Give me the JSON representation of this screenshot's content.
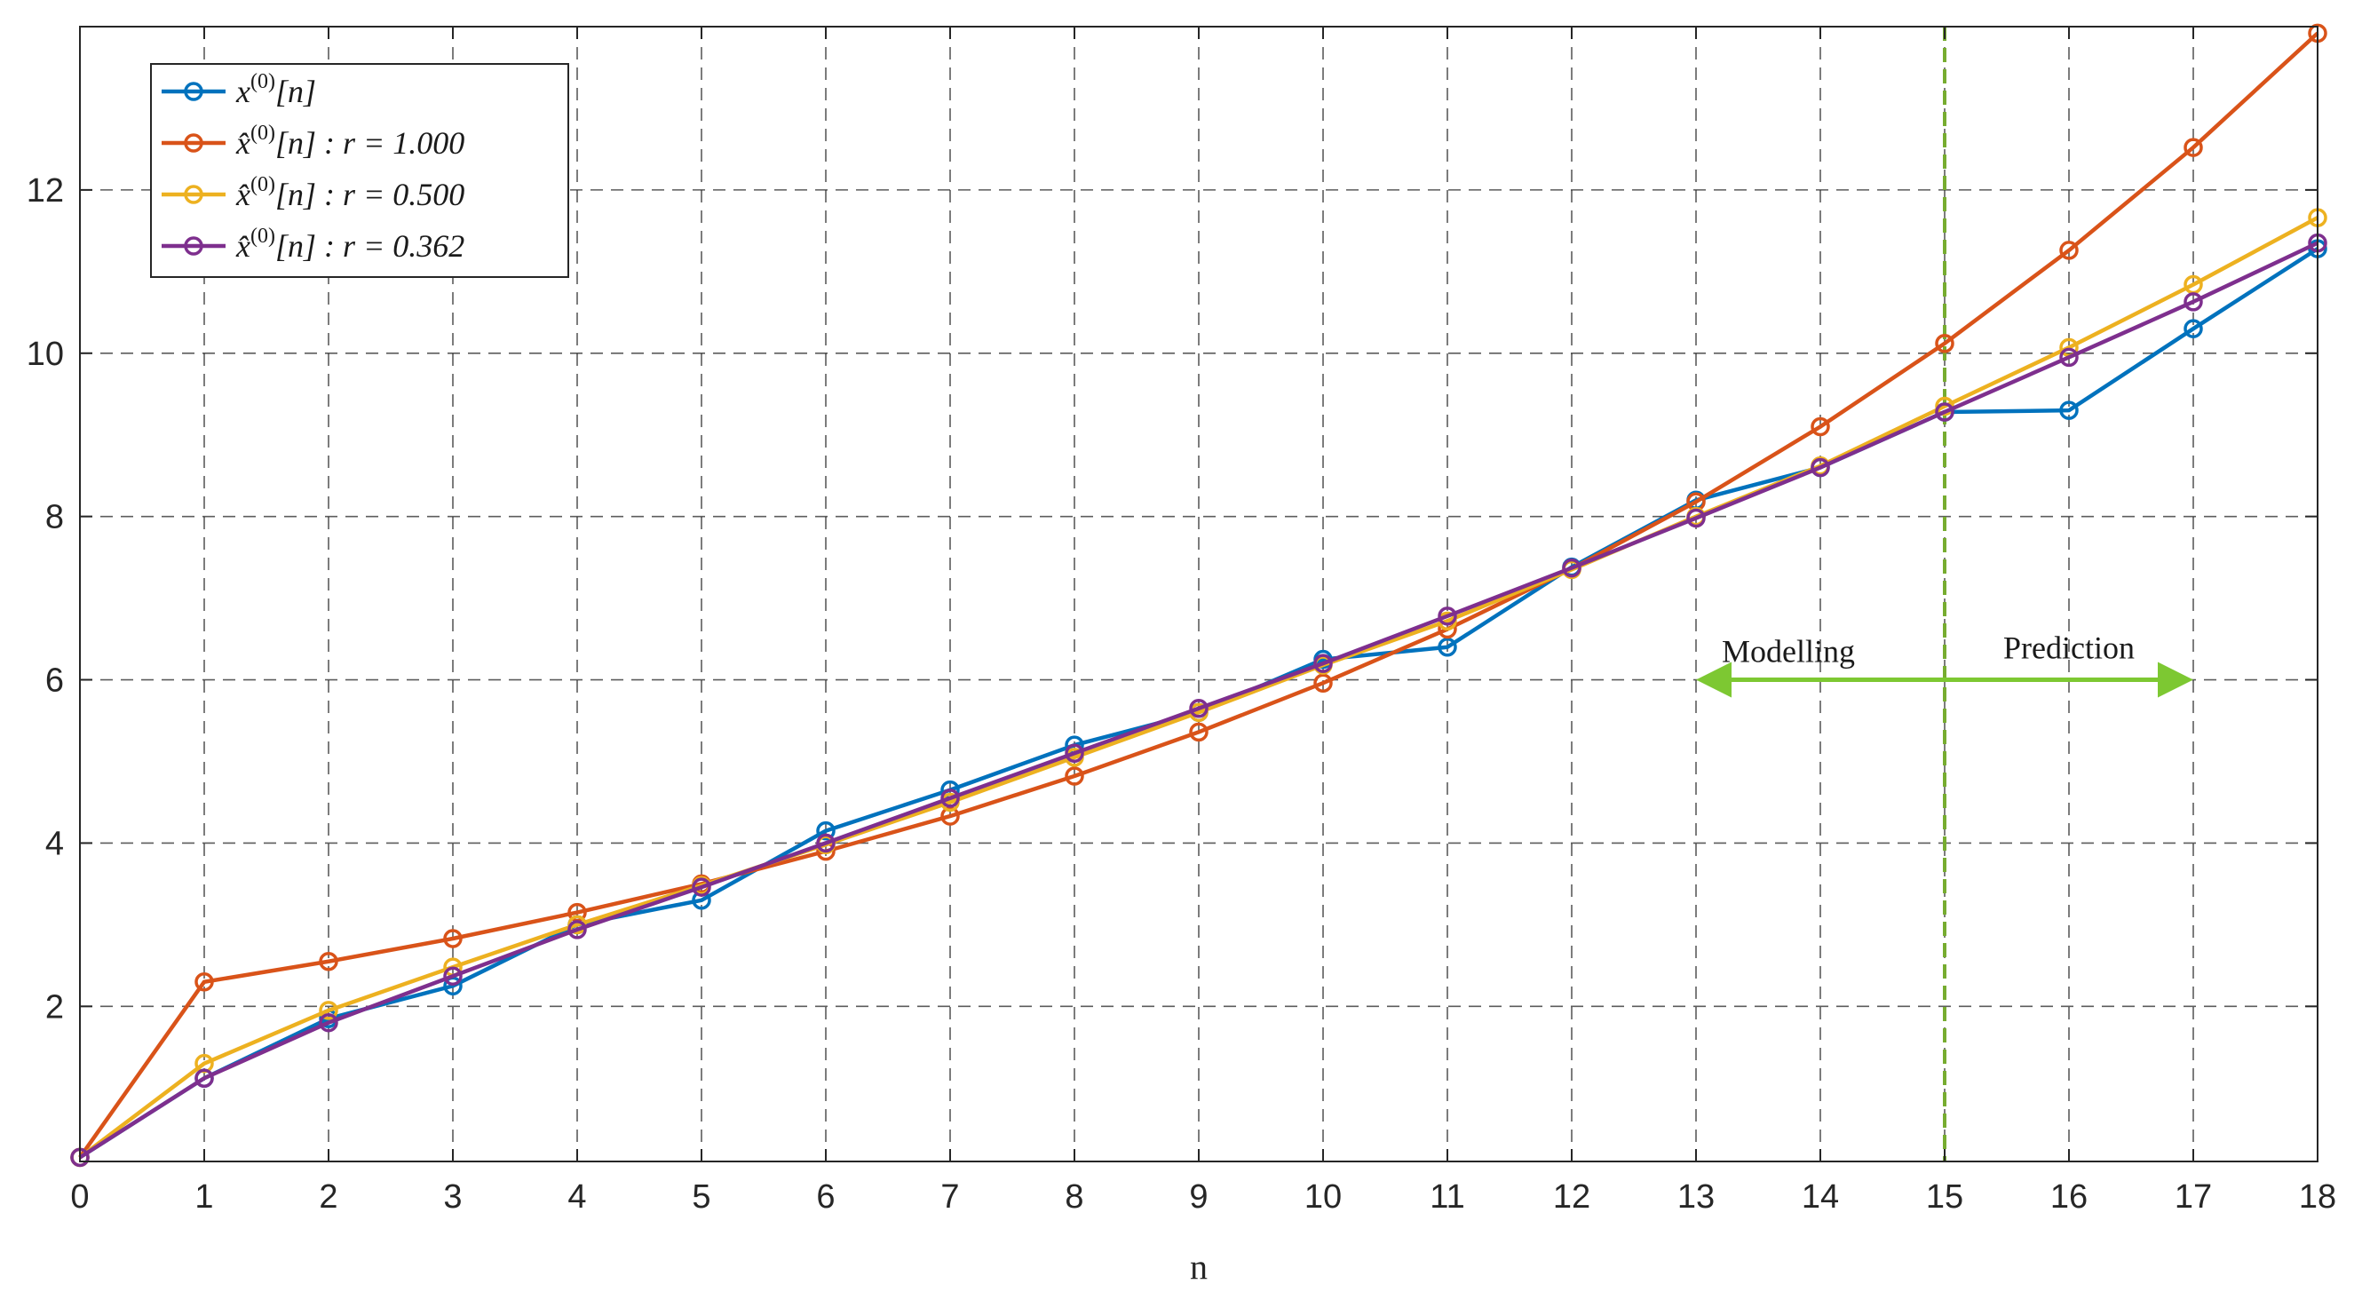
{
  "chart_data": {
    "type": "line",
    "xlabel": "n",
    "ylabel": "",
    "xlim": [
      0,
      18
    ],
    "ylim": [
      0.1,
      14
    ],
    "x_ticks": [
      0,
      1,
      2,
      3,
      4,
      5,
      6,
      7,
      8,
      9,
      10,
      11,
      12,
      13,
      14,
      15,
      16,
      17,
      18
    ],
    "y_ticks": [
      2,
      4,
      6,
      8,
      10,
      12
    ],
    "grid": true,
    "legend_position": "top-left",
    "x": [
      0,
      1,
      2,
      3,
      4,
      5,
      6,
      7,
      8,
      9,
      10,
      11,
      12,
      13,
      14,
      15,
      16,
      17,
      18
    ],
    "series": [
      {
        "name": "x(0)[n]",
        "legend_main": "x",
        "legend_sup": "(0)",
        "legend_rest": "[n]",
        "color": "#0072BD",
        "values": [
          0.15,
          1.12,
          1.85,
          2.25,
          3.0,
          3.3,
          4.15,
          4.65,
          5.2,
          5.6,
          6.25,
          6.4,
          7.38,
          8.2,
          8.6,
          9.28,
          9.3,
          10.3,
          11.28
        ]
      },
      {
        "name": "x̂(0)[n] : r = 1.000",
        "legend_main": "x̂",
        "legend_sup": "(0)",
        "legend_rest": "[n] : r = 1.000",
        "color": "#D95319",
        "values": [
          0.15,
          2.3,
          2.55,
          2.83,
          3.15,
          3.5,
          3.9,
          4.33,
          4.82,
          5.36,
          5.96,
          6.62,
          7.36,
          8.18,
          9.1,
          10.12,
          11.26,
          12.52,
          13.92
        ]
      },
      {
        "name": "x̂(0)[n] : r = 0.500",
        "legend_main": "x̂",
        "legend_sup": "(0)",
        "legend_rest": "[n] : r = 0.500",
        "color": "#EDB120",
        "values": [
          0.15,
          1.3,
          1.95,
          2.48,
          3.0,
          3.48,
          3.98,
          4.5,
          5.05,
          5.6,
          6.18,
          6.72,
          7.35,
          8.0,
          8.62,
          9.35,
          10.07,
          10.84,
          11.66
        ]
      },
      {
        "name": "x̂(0)[n] : r = 0.362",
        "legend_main": "x̂",
        "legend_sup": "(0)",
        "legend_rest": "[n] : r = 0.362",
        "color": "#7E2F8E",
        "values": [
          0.15,
          1.12,
          1.8,
          2.37,
          2.94,
          3.46,
          4.0,
          4.55,
          5.1,
          5.65,
          6.2,
          6.78,
          7.37,
          7.98,
          8.6,
          9.28,
          9.95,
          10.63,
          11.35
        ]
      }
    ],
    "annotations": {
      "divider_x": 15,
      "divider_color": "#77AC30",
      "arrow_color": "#7DC832",
      "arrow_from_x": 13,
      "arrow_to_x": 17,
      "arrow_y": 6,
      "left_label": "Modelling",
      "right_label": "Prediction"
    }
  }
}
